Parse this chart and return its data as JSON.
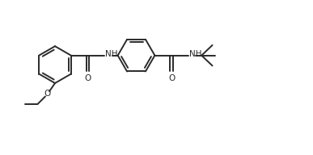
{
  "bg_color": "#ffffff",
  "line_color": "#2a2a2a",
  "line_width": 1.4,
  "fig_width": 3.87,
  "fig_height": 1.92,
  "dpi": 100,
  "font_size": 7.5,
  "label_color": "#2a2a2a",
  "xlim": [
    0,
    11
  ],
  "ylim": [
    -2.5,
    3.5
  ]
}
